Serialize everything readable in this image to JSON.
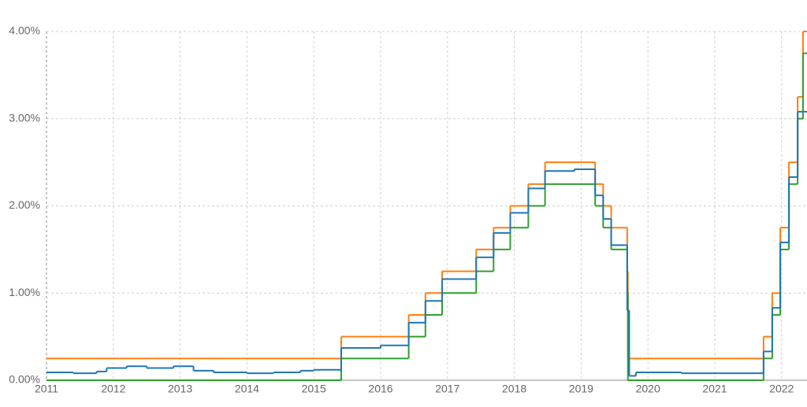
{
  "chart_data": {
    "type": "line",
    "drawstyle": "steps-post",
    "grid": true,
    "xlim": [
      2011,
      2022.38
    ],
    "xticks": [
      2011,
      2012,
      2013,
      2014,
      2015,
      2016,
      2017,
      2018,
      2019,
      2020,
      2021,
      2022
    ],
    "ylim": [
      0,
      4
    ],
    "yticks": [
      {
        "value": 0,
        "label": "0.00%"
      },
      {
        "value": 1,
        "label": "1.00%"
      },
      {
        "value": 2,
        "label": "2.00%"
      },
      {
        "value": 3,
        "label": "3.00%"
      },
      {
        "value": 4,
        "label": "4.00%"
      }
    ],
    "series": [
      {
        "color": "#ff7f0e",
        "x": [
          2011,
          2015.41,
          2016.42,
          2016.67,
          2016.92,
          2017.43,
          2017.69,
          2017.94,
          2018.21,
          2018.46,
          2019.21,
          2019.33,
          2019.45,
          2019.69,
          2019.7,
          2021.73,
          2021.86,
          2021.98,
          2022.11,
          2022.24,
          2022.32
        ],
        "values": [
          0.25,
          0.5,
          0.75,
          1.0,
          1.25,
          1.5,
          1.75,
          2.0,
          2.25,
          2.5,
          2.25,
          2.0,
          1.75,
          1.25,
          0.25,
          0.5,
          1.0,
          1.75,
          2.5,
          3.25,
          4.0
        ]
      },
      {
        "color": "#2ca02c",
        "x": [
          2011,
          2015.41,
          2016.42,
          2016.67,
          2016.92,
          2017.43,
          2017.69,
          2017.94,
          2018.21,
          2018.46,
          2019.21,
          2019.33,
          2019.45,
          2019.69,
          2019.7,
          2021.73,
          2021.86,
          2021.98,
          2022.11,
          2022.24,
          2022.32
        ],
        "values": [
          0.0,
          0.25,
          0.5,
          0.75,
          1.0,
          1.25,
          1.5,
          1.75,
          2.0,
          2.25,
          2.0,
          1.75,
          1.5,
          1.0,
          0.0,
          0.25,
          0.75,
          1.5,
          2.25,
          3.0,
          3.75
        ]
      },
      {
        "color": "#1f77b4",
        "x": [
          2011,
          2011.4,
          2011.75,
          2011.9,
          2012.2,
          2012.5,
          2012.9,
          2013.2,
          2013.5,
          2014.0,
          2014.4,
          2014.8,
          2015.0,
          2015.41,
          2016.0,
          2016.42,
          2016.67,
          2016.92,
          2017.43,
          2017.69,
          2017.94,
          2018.21,
          2018.46,
          2018.9,
          2019.21,
          2019.33,
          2019.45,
          2019.69,
          2019.72,
          2019.82,
          2020.5,
          2021.73,
          2021.86,
          2021.98,
          2022.11,
          2022.24
        ],
        "values": [
          0.09,
          0.08,
          0.1,
          0.14,
          0.16,
          0.14,
          0.16,
          0.11,
          0.09,
          0.08,
          0.09,
          0.11,
          0.12,
          0.37,
          0.4,
          0.66,
          0.91,
          1.16,
          1.41,
          1.69,
          1.92,
          2.2,
          2.4,
          2.42,
          2.12,
          1.85,
          1.55,
          0.8,
          0.05,
          0.09,
          0.08,
          0.33,
          0.83,
          1.58,
          2.33,
          3.08
        ]
      }
    ]
  }
}
